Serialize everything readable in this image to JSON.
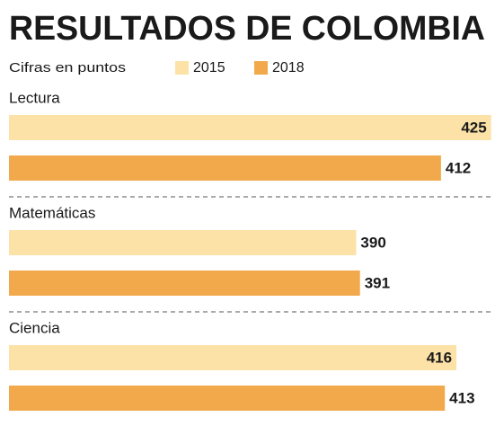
{
  "chart_data": {
    "type": "hbar",
    "title": "RESULTADOS DE COLOMBIA",
    "subtitle": "Cifras en puntos",
    "categories": [
      "Lectura",
      "Matemáticas",
      "Ciencia"
    ],
    "series": [
      {
        "name": "2015",
        "color": "#fde2a8",
        "values": [
          425,
          390,
          416
        ]
      },
      {
        "name": "2018",
        "color": "#f2a94b",
        "values": [
          412,
          391,
          413
        ]
      }
    ],
    "xlim": [
      300,
      426
    ]
  }
}
